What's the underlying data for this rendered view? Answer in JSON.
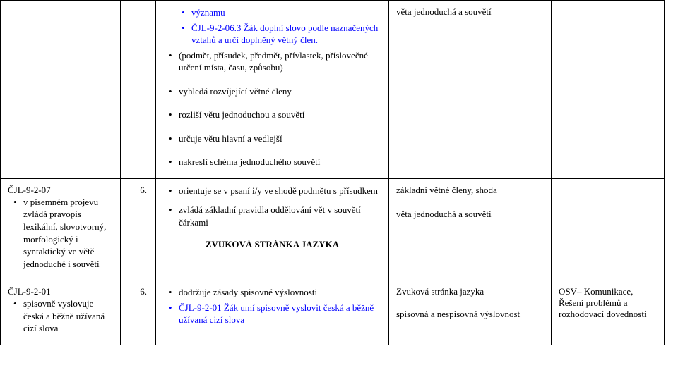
{
  "row1": {
    "col3": {
      "items": [
        {
          "text": "významu",
          "cls": "sub blue"
        },
        {
          "text": "ČJL-9-2-06.3 Žák doplní slovo podle naznačených vztahů a určí doplněný větný člen.",
          "cls": "sub blue"
        },
        {
          "text": "(podmět, přísudek, předmět, přívlastek, příslovečné určení místa, času, způsobu)",
          "cls": "black"
        },
        {
          "text": "vyhledá rozvíjející větné členy",
          "cls": "black",
          "gapBefore": true
        },
        {
          "text": "rozliší větu jednoduchou a souvětí",
          "cls": "black",
          "gapBefore": true
        },
        {
          "text": "určuje větu hlavní a vedlejší",
          "cls": "black",
          "gapBefore": true
        },
        {
          "text": "nakreslí schéma jednoduchého souvětí",
          "cls": "black",
          "gapBefore": true
        }
      ]
    },
    "col4": "věta jednoduchá a souvětí"
  },
  "row2": {
    "code": "ČJL-9-2-07",
    "col1_bullet": "v písemném projevu zvládá pravopis lexikální, slovotvorný, morfologický i syntaktický ve větě jednoduché i souvětí",
    "col2": "6.",
    "col3_items": [
      "orientuje se v psaní i/y ve shodě podmětu s přísudkem",
      "zvládá základní pravidla oddělování vět v souvětí čárkami"
    ],
    "zvuk_title": "ZVUKOVÁ STRÁNKA JAZYKA",
    "col4_items": [
      "základní větné členy, shoda",
      "věta jednoduchá a souvětí"
    ]
  },
  "row3": {
    "code": "ČJL-9-2-01",
    "col1_bullet": "spisovně vyslovuje česká a běžně užívaná cizí slova",
    "col2": "6.",
    "col3_items": [
      {
        "text": "dodržuje zásady spisovné výslovnosti",
        "cls": "black"
      },
      {
        "text": "ČJL-9-2-01 Žák umí spisovně vyslovit česká a běžně užívaná cizí slova",
        "cls": "blue"
      }
    ],
    "col4_items": [
      "Zvuková stránka jazyka",
      "spisovná a nespisovná výslovnost"
    ],
    "col5": "OSV– Komunikace, Řešení problémů a rozhodovací dovednosti"
  }
}
